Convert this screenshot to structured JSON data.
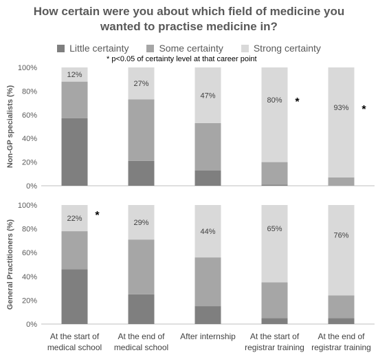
{
  "chart_data": {
    "type": "bar",
    "stacked": true,
    "title_lines": [
      "How certain were you about which field of medicine you",
      "wanted to practise medicine in?"
    ],
    "note": "* p<0.05 of certainty level at that career point",
    "legend": [
      {
        "name": "Little certainty",
        "color": "#7f7f7f"
      },
      {
        "name": "Some certainty",
        "color": "#a6a6a6"
      },
      {
        "name": "Strong certainty",
        "color": "#d9d9d9"
      }
    ],
    "categories": [
      [
        "At the start of",
        "medical school"
      ],
      [
        "At the end of",
        "medical school"
      ],
      [
        "After internship"
      ],
      [
        "At the start of",
        "registrar training"
      ],
      [
        "At the end of",
        "registrar training"
      ]
    ],
    "ytick_labels": [
      "0%",
      "20%",
      "40%",
      "60%",
      "80%",
      "100%"
    ],
    "ylim": [
      0,
      100
    ],
    "panels": [
      {
        "ylabel": "Non-GP specialists (%)",
        "series": [
          {
            "name": "Little certainty",
            "values": [
              57,
              21,
              13,
              1,
              0
            ]
          },
          {
            "name": "Some certainty",
            "values": [
              31,
              52,
              40,
              19,
              7
            ]
          },
          {
            "name": "Strong certainty",
            "values": [
              12,
              27,
              47,
              80,
              93
            ]
          }
        ],
        "labels": [
          "12%",
          "27%",
          "47%",
          "80%",
          "93%"
        ],
        "significant": [
          false,
          false,
          false,
          true,
          true
        ]
      },
      {
        "ylabel": "General Practitioners (%)",
        "series": [
          {
            "name": "Little certainty",
            "values": [
              46,
              25,
              15,
              5,
              5
            ]
          },
          {
            "name": "Some certainty",
            "values": [
              32,
              46,
              41,
              30,
              19
            ]
          },
          {
            "name": "Strong certainty",
            "values": [
              22,
              29,
              44,
              65,
              76
            ]
          }
        ],
        "labels": [
          "22%",
          "29%",
          "44%",
          "65%",
          "76%"
        ],
        "significant": [
          true,
          false,
          false,
          false,
          false
        ]
      }
    ],
    "significance_marker": "*"
  }
}
